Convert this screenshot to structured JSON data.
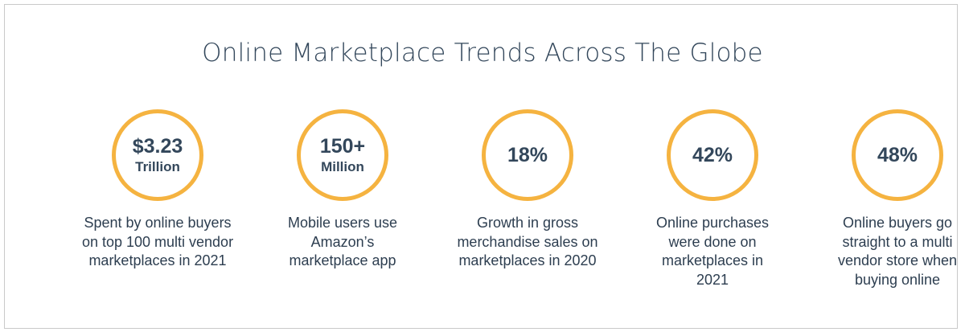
{
  "title": "Online Marketplace Trends Across The Globe",
  "stats": [
    {
      "value": "$3.23",
      "unit": "Trillion",
      "description": "Spent by online buyers on top 100 multi vendor marketplaces in 2021"
    },
    {
      "value": "150+",
      "unit": "Million",
      "description": "Mobile users use Amazon’s marketplace app"
    },
    {
      "value": "18%",
      "unit": "",
      "description": "Growth in gross merchandise sales on marketplaces in 2020"
    },
    {
      "value": "42%",
      "unit": "",
      "description": "Online purchases were done on marketplaces in 2021"
    },
    {
      "value": "48%",
      "unit": "",
      "description": "Online buyers go straight to a multi vendor store when buying online"
    }
  ],
  "colors": {
    "accent_ring": "#f5b340",
    "text": "#33475b",
    "border": "#c9c9c9"
  }
}
